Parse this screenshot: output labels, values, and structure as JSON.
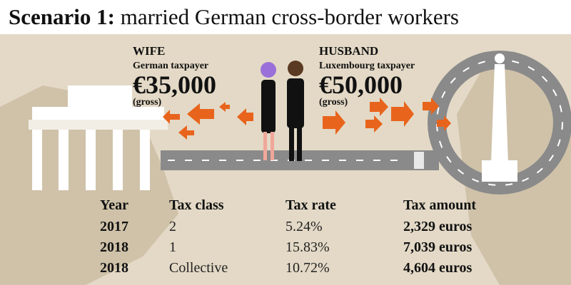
{
  "header": {
    "title_bold": "Scenario 1:",
    "title_rest": "married German cross-border workers"
  },
  "wife": {
    "role": "WIFE",
    "status": "German taxpayer",
    "income": "€35,000",
    "note": "(gross)"
  },
  "husband": {
    "role": "HUSBAND",
    "status": "Luxembourg taxpayer",
    "income": "€50,000",
    "note": "(gross)"
  },
  "table": {
    "headers": [
      "Year",
      "Tax class",
      "Tax rate",
      "Tax amount"
    ],
    "rows": [
      [
        "2017",
        "2",
        "5.24%",
        "2,329 euros"
      ],
      [
        "2018",
        "1",
        "15.83%",
        "7,039 euros"
      ],
      [
        "2018",
        "Collective",
        "10.72%",
        "4,604 euros"
      ]
    ]
  }
}
